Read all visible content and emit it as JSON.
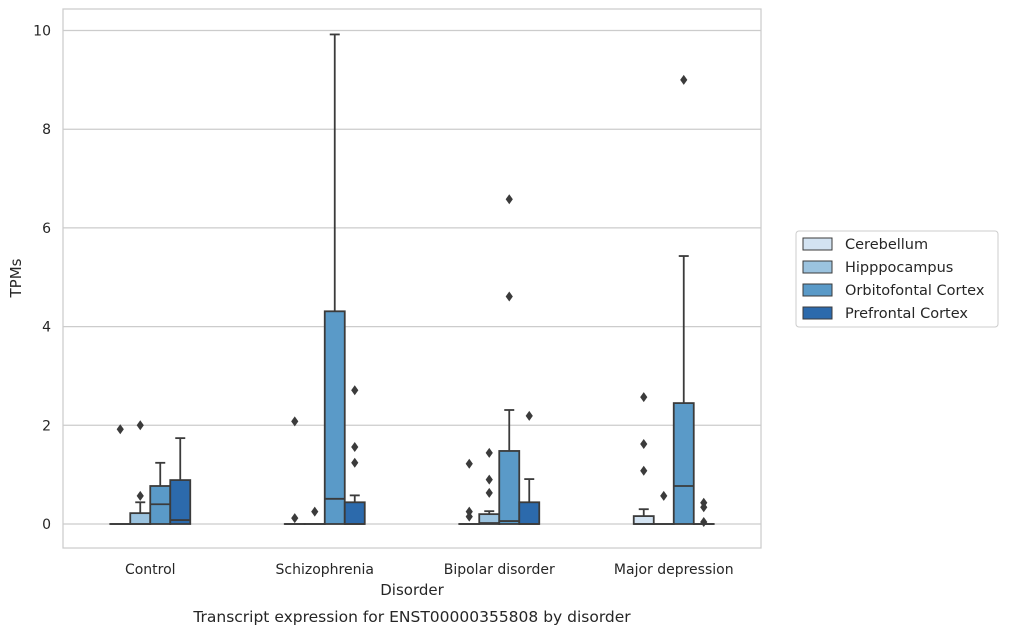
{
  "chart_data": {
    "type": "box",
    "title": "Transcript expression for ENST00000355808 by disorder",
    "xlabel": "Disorder",
    "ylabel": "TPMs",
    "ylim": [
      -0.45,
      10.45
    ],
    "yticks": [
      0,
      2,
      4,
      6,
      8,
      10
    ],
    "grid": true,
    "legend_position": "right",
    "categories": [
      "Control",
      "Schizophrenia",
      "Bipolar disorder",
      "Major depression"
    ],
    "series": [
      {
        "name": "Cerebellum",
        "color": "#d3e3f2",
        "boxes": [
          {
            "q1": 0,
            "median": 0,
            "q3": 0,
            "whisker_low": 0,
            "whisker_high": 0,
            "outliers": [
              1.92
            ]
          },
          {
            "q1": 0,
            "median": 0,
            "q3": 0,
            "whisker_low": 0,
            "whisker_high": 0,
            "outliers": [
              2.08,
              0.12
            ]
          },
          {
            "q1": 0,
            "median": 0,
            "q3": 0,
            "whisker_low": 0,
            "whisker_high": 0,
            "outliers": [
              1.22,
              0.25,
              0.15
            ]
          },
          {
            "q1": 0,
            "median": 0,
            "q3": 0.16,
            "whisker_low": 0,
            "whisker_high": 0.3,
            "outliers": [
              2.57,
              1.62,
              1.08
            ]
          }
        ]
      },
      {
        "name": "Hipppocampus",
        "color": "#9bc3df",
        "boxes": [
          {
            "q1": 0,
            "median": 0,
            "q3": 0.22,
            "whisker_low": 0,
            "whisker_high": 0.44,
            "outliers": [
              2.0,
              0.57
            ]
          },
          {
            "q1": 0,
            "median": 0,
            "q3": 0,
            "whisker_low": 0,
            "whisker_high": 0,
            "outliers": [
              0.25
            ]
          },
          {
            "q1": 0,
            "median": 0.02,
            "q3": 0.2,
            "whisker_low": 0,
            "whisker_high": 0.26,
            "outliers": [
              1.44,
              0.9,
              0.63
            ]
          },
          {
            "q1": 0,
            "median": 0,
            "q3": 0,
            "whisker_low": 0,
            "whisker_high": 0,
            "outliers": [
              0.57
            ]
          }
        ]
      },
      {
        "name": "Orbitofontal Cortex",
        "color": "#5a9ac8",
        "boxes": [
          {
            "q1": 0,
            "median": 0.4,
            "q3": 0.77,
            "whisker_low": 0,
            "whisker_high": 1.24,
            "outliers": []
          },
          {
            "q1": 0,
            "median": 0.51,
            "q3": 4.31,
            "whisker_low": 0,
            "whisker_high": 9.92,
            "outliers": []
          },
          {
            "q1": 0,
            "median": 0.06,
            "q3": 1.48,
            "whisker_low": 0,
            "whisker_high": 2.31,
            "outliers": [
              6.58,
              4.61
            ]
          },
          {
            "q1": 0,
            "median": 0.77,
            "q3": 2.45,
            "whisker_low": 0,
            "whisker_high": 5.43,
            "outliers": [
              9.0
            ]
          }
        ]
      },
      {
        "name": "Prefrontal Cortex",
        "color": "#2c6aac",
        "boxes": [
          {
            "q1": 0,
            "median": 0.08,
            "q3": 0.89,
            "whisker_low": 0,
            "whisker_high": 1.74,
            "outliers": []
          },
          {
            "q1": 0,
            "median": 0,
            "q3": 0.44,
            "whisker_low": 0,
            "whisker_high": 0.58,
            "outliers": [
              2.71,
              1.56,
              1.24
            ]
          },
          {
            "q1": 0,
            "median": 0,
            "q3": 0.44,
            "whisker_low": 0,
            "whisker_high": 0.91,
            "outliers": [
              2.19
            ]
          },
          {
            "q1": 0,
            "median": 0,
            "q3": 0,
            "whisker_low": 0,
            "whisker_high": 0,
            "outliers": [
              0.43,
              0.34,
              0.04
            ]
          }
        ]
      }
    ]
  }
}
